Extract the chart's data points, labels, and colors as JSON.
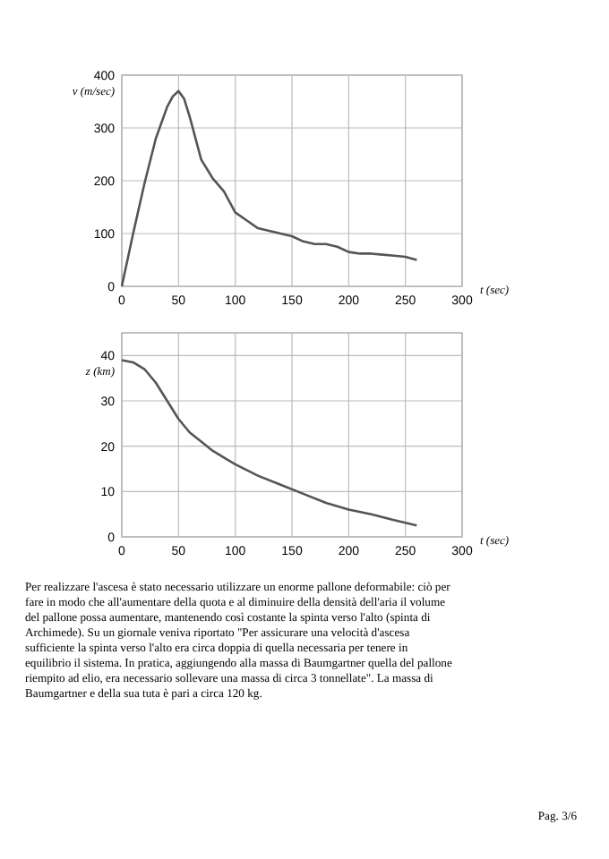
{
  "chart_data": [
    {
      "type": "line",
      "xlabel": "t (sec)",
      "ylabel": "v (m/sec)",
      "xlim": [
        0,
        300
      ],
      "ylim": [
        0,
        400
      ],
      "xticks": [
        0,
        50,
        100,
        150,
        200,
        250,
        300
      ],
      "yticks": [
        0,
        100,
        200,
        300,
        400
      ],
      "grid": true,
      "color": "#555555",
      "x": [
        0,
        10,
        20,
        30,
        40,
        45,
        50,
        55,
        60,
        70,
        80,
        90,
        100,
        110,
        120,
        130,
        140,
        150,
        160,
        170,
        180,
        190,
        200,
        210,
        220,
        230,
        240,
        250,
        260
      ],
      "values": [
        0,
        100,
        195,
        280,
        340,
        360,
        370,
        355,
        320,
        240,
        205,
        180,
        140,
        125,
        110,
        105,
        100,
        95,
        85,
        80,
        80,
        75,
        65,
        62,
        62,
        60,
        58,
        56,
        50
      ]
    },
    {
      "type": "line",
      "xlabel": "t (sec)",
      "ylabel": "z (km)",
      "xlim": [
        0,
        300
      ],
      "ylim": [
        0,
        45
      ],
      "xticks": [
        0,
        50,
        100,
        150,
        200,
        250,
        300
      ],
      "yticks": [
        0,
        10,
        20,
        30,
        40
      ],
      "grid": true,
      "color": "#555555",
      "x": [
        0,
        10,
        20,
        30,
        40,
        50,
        60,
        70,
        80,
        100,
        120,
        140,
        160,
        180,
        200,
        220,
        240,
        260
      ],
      "values": [
        39,
        38.5,
        37,
        34,
        30,
        26,
        23,
        21,
        19,
        16,
        13.5,
        11.5,
        9.5,
        7.5,
        6,
        5,
        3.7,
        2.5
      ],
      "annotations": [
        "Per realizzare l'ascesa è stato necessario utilizzare un enorme pallone deformabile: ciò per fare in modo che all'aumentare della quota e al diminuire della densità dell'aria il volume del pallone possa aumentare, mantenendo così costante la spinta verso l'alto (spinta di Archimede). Su un giornale veniva riportato \"Per assicurare una velocità d'ascesa sufficiente la spinta verso l'alto era circa doppia di quella necessaria per tenere in equilibrio il sistema. In pratica, aggiungendo alla massa di Baumgartner quella del pallone riempito ad elio, era necessario sollevare una massa di circa 3 tonnellate\". La massa di Baumgartner e della sua tuta è pari a circa 120 kg.",
        "Pag. 3/6"
      ]
    }
  ]
}
